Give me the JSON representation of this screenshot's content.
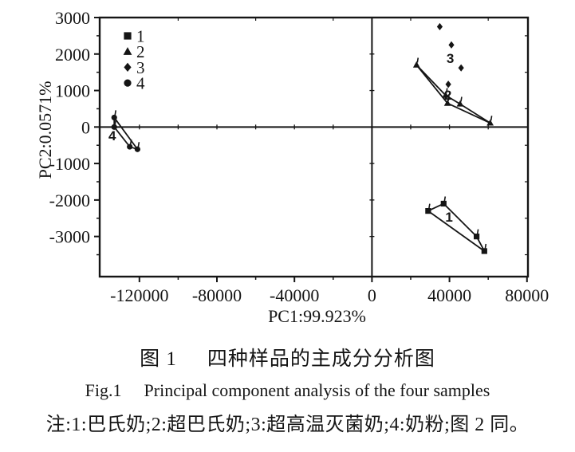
{
  "figure": {
    "captions": {
      "zh": {
        "label": "图 1",
        "text": "四种样品的主成分分析图"
      },
      "en": {
        "label": "Fig.1",
        "text": "Principal component analysis of the four samples"
      },
      "note": "注:1:巴氏奶;2:超巴氏奶;3:超高温灭菌奶;4:奶粉;图 2 同。"
    }
  },
  "chart_data": {
    "type": "scatter",
    "title": "",
    "xlabel": "PC1:99.923%",
    "ylabel": "PC2:0.0571%",
    "xlim": [
      -140500,
      80500
    ],
    "ylim": [
      -4100,
      3000
    ],
    "x_ticks": [
      -120000,
      -80000,
      -40000,
      0,
      40000,
      80000
    ],
    "x_minor_ticks": [
      -100000,
      -60000,
      -20000,
      20000,
      60000
    ],
    "y_ticks": [
      3000,
      2000,
      1000,
      0,
      -1000,
      -2000,
      -3000
    ],
    "y_minor_ticks": [
      2500,
      1500,
      500,
      -500,
      -1500,
      -2500,
      -3500
    ],
    "grid": false,
    "zero_lines": true,
    "ink_color": "#151515",
    "legend_position": "top-left-inside",
    "legend": [
      {
        "marker": "square",
        "label": "1"
      },
      {
        "marker": "triangle",
        "label": "2"
      },
      {
        "marker": "diamond",
        "label": "3"
      },
      {
        "marker": "circle",
        "label": "4"
      }
    ],
    "series": [
      {
        "name": "1",
        "sample": "pasteurized-milk",
        "marker": "square",
        "stems": true,
        "points": [
          [
            29000,
            -2300
          ],
          [
            37000,
            -2100
          ],
          [
            54000,
            -3000
          ],
          [
            58000,
            -3400
          ]
        ],
        "lines": [
          [
            [
              29000,
              -2300
            ],
            [
              37000,
              -2100
            ],
            [
              54000,
              -3000
            ],
            [
              58000,
              -3400
            ],
            [
              29000,
              -2300
            ]
          ]
        ],
        "label": "1",
        "label_pos": [
          39800,
          -2460
        ]
      },
      {
        "name": "2",
        "sample": "ultra-pasteurized-milk",
        "marker": "triangle",
        "stems": true,
        "points": [
          [
            23000,
            1700
          ],
          [
            38000,
            870
          ],
          [
            39000,
            650
          ],
          [
            45500,
            630
          ],
          [
            61000,
            110
          ]
        ],
        "lines": [
          [
            [
              23000,
              1700
            ],
            [
              38000,
              870
            ],
            [
              45500,
              630
            ],
            [
              61000,
              110
            ]
          ],
          [
            [
              23000,
              1700
            ],
            [
              39000,
              650
            ],
            [
              61000,
              110
            ]
          ]
        ],
        "label": "2",
        "label_pos": [
          39200,
          880
        ]
      },
      {
        "name": "3",
        "sample": "uht-sterilized-milk",
        "marker": "diamond",
        "stems": false,
        "points": [
          [
            35000,
            2750
          ],
          [
            41000,
            2250
          ],
          [
            46000,
            1620
          ],
          [
            39400,
            1170
          ]
        ],
        "lines": [],
        "label": "3",
        "label_pos": [
          40400,
          1890
        ]
      },
      {
        "name": "4",
        "sample": "milk-powder",
        "marker": "circle",
        "stems": true,
        "points": [
          [
            -133000,
            260
          ],
          [
            -133000,
            0
          ],
          [
            -125000,
            -540
          ],
          [
            -121000,
            -610
          ]
        ],
        "lines": [
          [
            [
              -133000,
              260
            ],
            [
              -133000,
              0
            ],
            [
              -125000,
              -540
            ],
            [
              -121000,
              -610
            ]
          ],
          [
            [
              -133000,
              260
            ],
            [
              -121000,
              -610
            ]
          ]
        ],
        "label": "4",
        "label_pos": [
          -134000,
          -230
        ]
      }
    ]
  }
}
